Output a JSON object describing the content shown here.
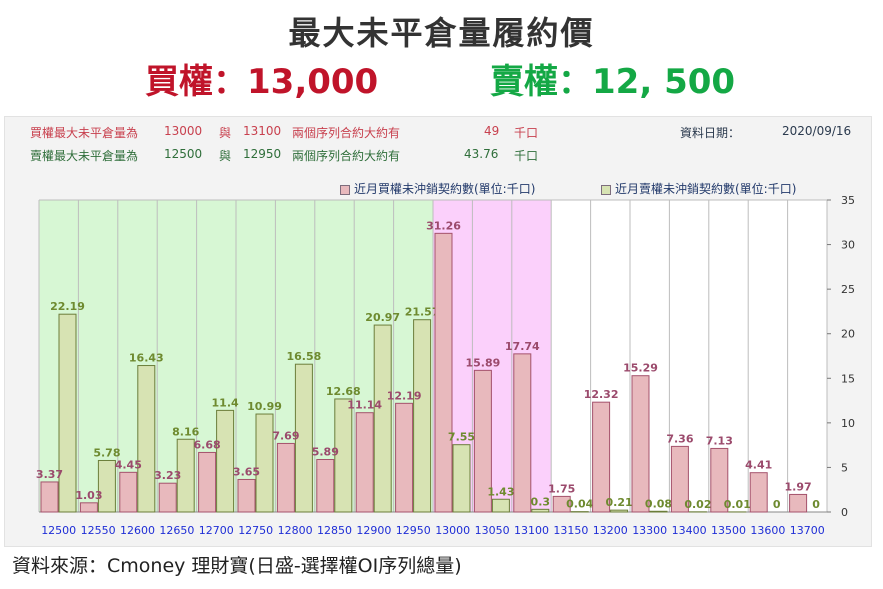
{
  "header": {
    "title": "最大未平倉量履約價",
    "call_line": "買權：13,000",
    "put_line": "賣權：12, 500"
  },
  "info": {
    "call": {
      "label": "買權最大未平倉量為",
      "strike_a": "13000",
      "and_word": "與",
      "strike_b": "13100",
      "desc": "兩個序列合約大約有",
      "amount": "49",
      "unit": "千口"
    },
    "put": {
      "label": "賣權最大未平倉量為",
      "strike_a": "12500",
      "and_word": "與",
      "strike_b": "12950",
      "desc": "兩個序列合約大約有",
      "amount": "43.76",
      "unit": "千口"
    },
    "date_label": "資料日期：",
    "date_value": "2020/09/16"
  },
  "footer": {
    "source": "資料來源：Cmoney 理財寶(日盛-選擇權OI序列總量)"
  },
  "colors": {
    "call_bar": "#e8b9bd",
    "call_border": "#a4526c",
    "put_bar": "#d7e3b3",
    "put_border": "#6b7d3a",
    "zone_green": "#d7f7d4",
    "zone_pink": "#fbd0fb",
    "call_label": "#9b4a6c",
    "put_label": "#6e8a2f",
    "tick_label": "#1f2ed6"
  },
  "chart_data": {
    "type": "bar",
    "categories": [
      "12500",
      "12550",
      "12600",
      "12650",
      "12700",
      "12750",
      "12800",
      "12850",
      "12900",
      "12950",
      "13000",
      "13050",
      "13100",
      "13150",
      "13200",
      "13300",
      "13400",
      "13500",
      "13600",
      "13700"
    ],
    "series": [
      {
        "name": "近月買權未沖銷契約數(單位:千口)",
        "values": [
          3.37,
          1.03,
          4.45,
          3.23,
          6.68,
          3.65,
          7.69,
          5.89,
          11.14,
          12.19,
          31.26,
          15.89,
          17.74,
          1.75,
          12.32,
          15.29,
          7.36,
          7.13,
          4.41,
          1.97
        ]
      },
      {
        "name": "近月賣權未沖銷契約數(單位:千口)",
        "values": [
          22.19,
          5.78,
          16.43,
          8.16,
          11.4,
          10.99,
          16.58,
          12.68,
          20.97,
          21.57,
          7.55,
          1.43,
          0.3,
          0.04,
          0.21,
          0.08,
          0.02,
          0.01,
          0,
          0
        ]
      }
    ],
    "y_ticks": [
      0,
      5,
      10,
      15,
      20,
      25,
      30,
      35
    ],
    "ylim": [
      0,
      35
    ],
    "put_labels": [
      "22.19",
      "5.78",
      "16.43",
      "8.16",
      "11.4",
      "10.99",
      "16.58",
      "12.68",
      "20.97",
      "21.57",
      "7.55",
      "1.43",
      "0.3",
      "0.04",
      "0.21",
      "0.08",
      "0.02",
      "0.01",
      "0",
      "0"
    ],
    "call_labels": [
      "3.37",
      "1.03",
      "4.45",
      "3.23",
      "6.68",
      "3.65",
      "7.69",
      "5.89",
      "11.14",
      "12.19",
      "31.26",
      "15.89",
      "17.74",
      "1.75",
      "12.32",
      "15.29",
      "7.36",
      "7.13",
      "4.41",
      "1.97"
    ],
    "shaded_zones": [
      {
        "from_index": 0,
        "to_index": 9,
        "color": "green"
      },
      {
        "from_index": 10,
        "to_index": 12,
        "color": "pink"
      }
    ],
    "grid": true,
    "legend_position": "top-right",
    "y_axis_side": "right"
  }
}
